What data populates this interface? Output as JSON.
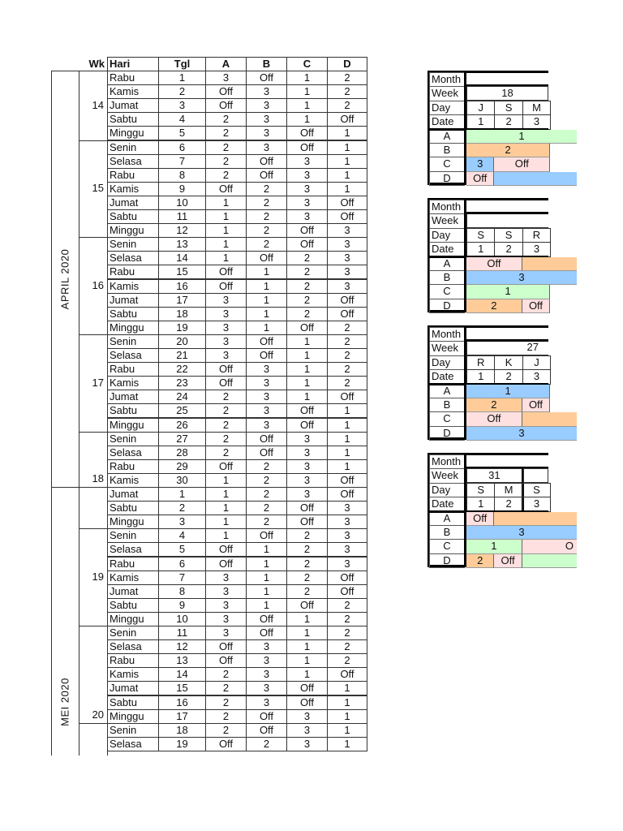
{
  "main": {
    "headers": {
      "wk": "Wk",
      "hari": "Hari",
      "tgl": "Tgl",
      "a": "A",
      "b": "B",
      "c": "C",
      "d": "D"
    },
    "months": [
      {
        "label": "APRIL 2020",
        "days": 30
      },
      {
        "label": "MEI 2020",
        "days": 31
      }
    ],
    "weeks": [
      {
        "label": "14",
        "rows": 5
      },
      {
        "label": "15",
        "rows": 7
      },
      {
        "label": "16",
        "rows": 7
      },
      {
        "label": "17",
        "rows": 7
      },
      {
        "label": "18",
        "rows": 4
      },
      {
        "label": "",
        "rows": 3
      },
      {
        "label": "19",
        "rows": 7
      },
      {
        "label": "20",
        "rows": 7
      },
      {
        "label": "",
        "rows": 3
      }
    ],
    "rows": [
      [
        "Rabu",
        "1",
        "3",
        "Off",
        "1",
        "2"
      ],
      [
        "Kamis",
        "2",
        "Off",
        "3",
        "1",
        "2"
      ],
      [
        "Jumat",
        "3",
        "Off",
        "3",
        "1",
        "2"
      ],
      [
        "Sabtu",
        "4",
        "2",
        "3",
        "1",
        "Off"
      ],
      [
        "Minggu",
        "5",
        "2",
        "3",
        "Off",
        "1"
      ],
      [
        "Senin",
        "6",
        "2",
        "3",
        "Off",
        "1"
      ],
      [
        "Selasa",
        "7",
        "2",
        "Off",
        "3",
        "1"
      ],
      [
        "Rabu",
        "8",
        "2",
        "Off",
        "3",
        "1"
      ],
      [
        "Kamis",
        "9",
        "Off",
        "2",
        "3",
        "1"
      ],
      [
        "Jumat",
        "10",
        "1",
        "2",
        "3",
        "Off"
      ],
      [
        "Sabtu",
        "11",
        "1",
        "2",
        "3",
        "Off"
      ],
      [
        "Minggu",
        "12",
        "1",
        "2",
        "Off",
        "3"
      ],
      [
        "Senin",
        "13",
        "1",
        "2",
        "Off",
        "3"
      ],
      [
        "Selasa",
        "14",
        "1",
        "Off",
        "2",
        "3"
      ],
      [
        "Rabu",
        "15",
        "Off",
        "1",
        "2",
        "3"
      ],
      [
        "Kamis",
        "16",
        "Off",
        "1",
        "2",
        "3"
      ],
      [
        "Jumat",
        "17",
        "3",
        "1",
        "2",
        "Off"
      ],
      [
        "Sabtu",
        "18",
        "3",
        "1",
        "2",
        "Off"
      ],
      [
        "Minggu",
        "19",
        "3",
        "1",
        "Off",
        "2"
      ],
      [
        "Senin",
        "20",
        "3",
        "Off",
        "1",
        "2"
      ],
      [
        "Selasa",
        "21",
        "3",
        "Off",
        "1",
        "2"
      ],
      [
        "Rabu",
        "22",
        "Off",
        "3",
        "1",
        "2"
      ],
      [
        "Kamis",
        "23",
        "Off",
        "3",
        "1",
        "2"
      ],
      [
        "Jumat",
        "24",
        "2",
        "3",
        "1",
        "Off"
      ],
      [
        "Sabtu",
        "25",
        "2",
        "3",
        "Off",
        "1"
      ],
      [
        "Minggu",
        "26",
        "2",
        "3",
        "Off",
        "1"
      ],
      [
        "Senin",
        "27",
        "2",
        "Off",
        "3",
        "1"
      ],
      [
        "Selasa",
        "28",
        "2",
        "Off",
        "3",
        "1"
      ],
      [
        "Rabu",
        "29",
        "Off",
        "2",
        "3",
        "1"
      ],
      [
        "Kamis",
        "30",
        "1",
        "2",
        "3",
        "Off"
      ],
      [
        "Jumat",
        "1",
        "1",
        "2",
        "3",
        "Off"
      ],
      [
        "Sabtu",
        "2",
        "1",
        "2",
        "Off",
        "3"
      ],
      [
        "Minggu",
        "3",
        "1",
        "2",
        "Off",
        "3"
      ],
      [
        "Senin",
        "4",
        "1",
        "Off",
        "2",
        "3"
      ],
      [
        "Selasa",
        "5",
        "Off",
        "1",
        "2",
        "3"
      ],
      [
        "Rabu",
        "6",
        "Off",
        "1",
        "2",
        "3"
      ],
      [
        "Kamis",
        "7",
        "3",
        "1",
        "2",
        "Off"
      ],
      [
        "Jumat",
        "8",
        "3",
        "1",
        "2",
        "Off"
      ],
      [
        "Sabtu",
        "9",
        "3",
        "1",
        "Off",
        "2"
      ],
      [
        "Minggu",
        "10",
        "3",
        "Off",
        "1",
        "2"
      ],
      [
        "Senin",
        "11",
        "3",
        "Off",
        "1",
        "2"
      ],
      [
        "Selasa",
        "12",
        "Off",
        "3",
        "1",
        "2"
      ],
      [
        "Rabu",
        "13",
        "Off",
        "3",
        "1",
        "2"
      ],
      [
        "Kamis",
        "14",
        "2",
        "3",
        "1",
        "Off"
      ],
      [
        "Jumat",
        "15",
        "2",
        "3",
        "Off",
        "1"
      ],
      [
        "Sabtu",
        "16",
        "2",
        "3",
        "Off",
        "1"
      ],
      [
        "Minggu",
        "17",
        "2",
        "Off",
        "3",
        "1"
      ],
      [
        "Senin",
        "18",
        "2",
        "Off",
        "3",
        "1"
      ],
      [
        "Selasa",
        "19",
        "Off",
        "2",
        "3",
        "1"
      ]
    ]
  },
  "colors": {
    "green": "#ccffcc",
    "orange": "#ffcc99",
    "blue": "#99ccff",
    "pink": "#ffe0e0"
  },
  "summary_labels": {
    "month": "Month",
    "week": "Week",
    "day": "Day",
    "date": "Date",
    "teams": [
      "A",
      "B",
      "C",
      "D"
    ]
  },
  "summary_blocks": [
    {
      "month": "",
      "week": "18",
      "week_align": "center",
      "days": [
        "J",
        "S",
        "M"
      ],
      "dates": [
        "1",
        "2",
        "3"
      ],
      "teams": [
        [
          {
            "span": 3,
            "color": "green",
            "text": "1",
            "overflow": true
          }
        ],
        [
          {
            "span": 3,
            "color": "orange",
            "text": "2"
          }
        ],
        [
          {
            "span": 1,
            "color": "blue",
            "text": "3"
          },
          {
            "span": 2,
            "color": "pink",
            "text": "Off"
          }
        ],
        [
          {
            "span": 1,
            "color": "pink",
            "text": "Off"
          },
          {
            "span": 2,
            "color": "blue",
            "text": "",
            "overflow": true
          }
        ]
      ]
    },
    {
      "month": "",
      "week": "",
      "week_align": "center",
      "days": [
        "S",
        "S",
        "R"
      ],
      "dates": [
        "1",
        "2",
        "3"
      ],
      "teams": [
        [
          {
            "span": 2,
            "color": "pink",
            "text": "Off"
          },
          {
            "span": 1,
            "color": "orange",
            "text": "",
            "overflow": true
          }
        ],
        [
          {
            "span": 3,
            "color": "blue",
            "text": "3",
            "overflow": true
          }
        ],
        [
          {
            "span": 3,
            "color": "green",
            "text": "1"
          }
        ],
        [
          {
            "span": 2,
            "color": "orange",
            "text": "2"
          },
          {
            "span": 1,
            "color": "pink",
            "text": "Off"
          }
        ]
      ]
    },
    {
      "month": "",
      "week": "27",
      "week_align": "right",
      "days": [
        "R",
        "K",
        "J"
      ],
      "dates": [
        "1",
        "2",
        "3"
      ],
      "teams": [
        [
          {
            "span": 3,
            "color": "blue",
            "text": "1"
          }
        ],
        [
          {
            "span": 2,
            "color": "orange",
            "text": "2"
          },
          {
            "span": 1,
            "color": "pink",
            "text": "Off"
          }
        ],
        [
          {
            "span": 2,
            "color": "pink",
            "text": "Off"
          },
          {
            "span": 1,
            "color": "orange",
            "text": "",
            "overflow": true
          }
        ],
        [
          {
            "span": 3,
            "color": "blue",
            "text": "3",
            "overflow": true
          }
        ]
      ]
    },
    {
      "month": "",
      "week": "31",
      "week_align": "split",
      "days": [
        "S",
        "M",
        "S"
      ],
      "dates": [
        "1",
        "2",
        "3"
      ],
      "teams": [
        [
          {
            "span": 1,
            "color": "pink",
            "text": "Off"
          },
          {
            "span": 2,
            "color": "orange",
            "text": "",
            "overflow": true
          }
        ],
        [
          {
            "span": 3,
            "color": "blue",
            "text": "3",
            "overflow": true
          }
        ],
        [
          {
            "span": 2,
            "color": "green",
            "text": "1"
          },
          {
            "span": 1,
            "color": "pink",
            "text": "O",
            "overflow": true,
            "align": "right"
          }
        ],
        [
          {
            "span": 1,
            "color": "orange",
            "text": "2"
          },
          {
            "span": 1,
            "color": "pink",
            "text": "Off"
          },
          {
            "span": 1,
            "color": "green",
            "text": "",
            "overflow": true
          }
        ]
      ]
    }
  ]
}
